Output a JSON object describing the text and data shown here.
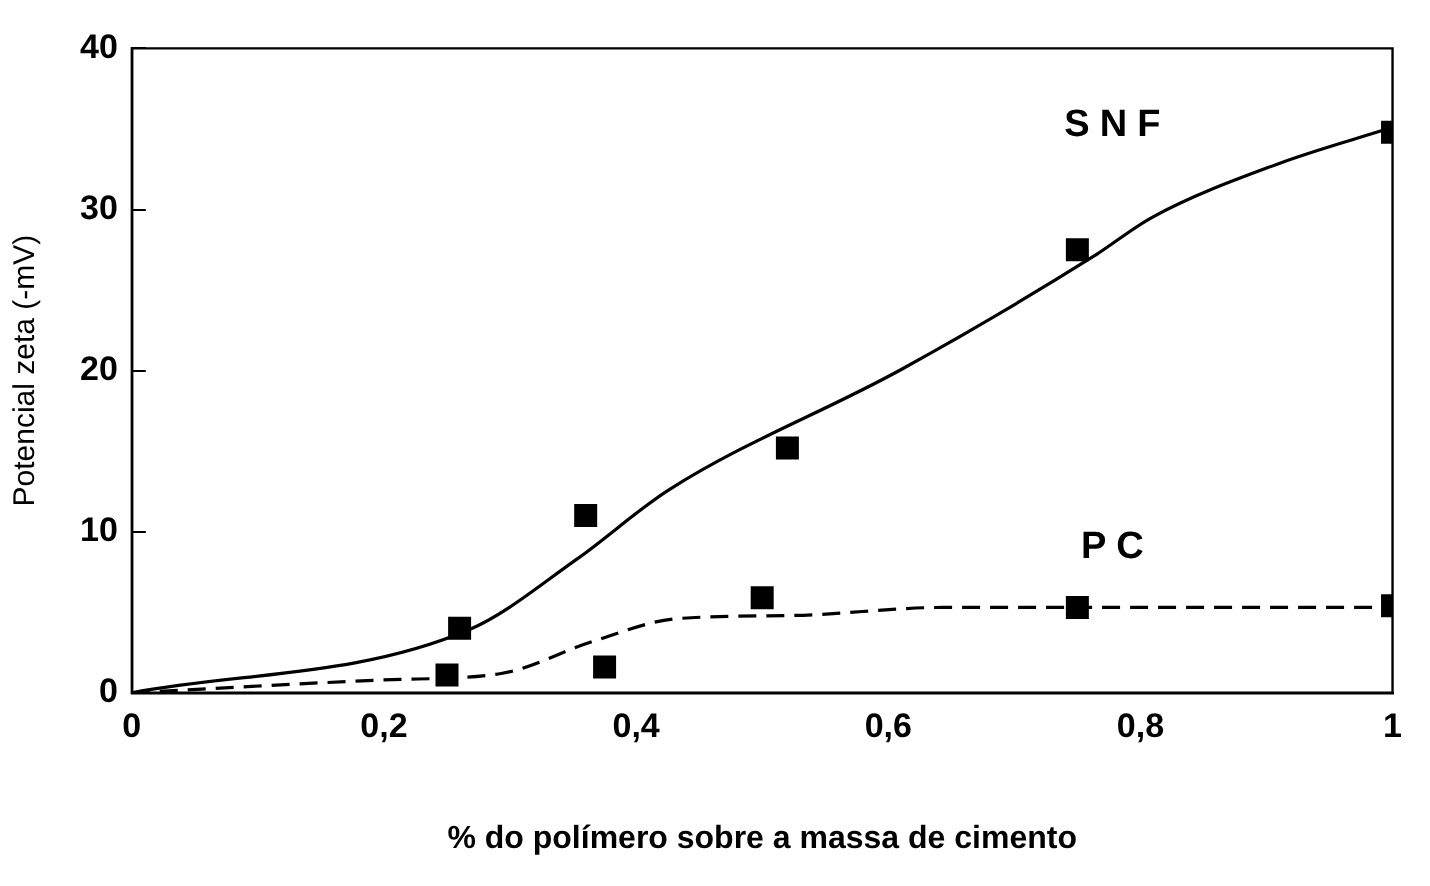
{
  "chart_data": {
    "type": "scatter",
    "xlabel": "% do polímero sobre a massa de cimento",
    "ylabel": "Potencial zeta (-mV)",
    "xlim": [
      0,
      1
    ],
    "xticks": [
      0,
      {
        "value": 0.2,
        "label": "0,2"
      },
      {
        "value": 0.4,
        "label": "0,4"
      },
      {
        "value": 0.6,
        "label": "0,6"
      },
      {
        "value": 0.8,
        "label": "0,8"
      },
      1
    ],
    "ylim": [
      0,
      40
    ],
    "yticks": [
      0,
      10,
      20,
      30,
      40
    ],
    "grid": false,
    "legend": false,
    "series": [
      {
        "type": "line",
        "color": "#000000",
        "line_style": "solid",
        "marker": "none",
        "x": [
          0,
          0.267,
          0.353,
          0.426,
          0.611,
          0.763,
          0.809,
          0.908,
          1.0
        ],
        "values": [
          0,
          3.9,
          8.3,
          12.6,
          20.1,
          27.1,
          29.5,
          32.8,
          35.1
        ]
      },
      {
        "type": "line",
        "color": "#000000",
        "line_style": "dashed",
        "marker": "none",
        "x": [
          0,
          0.2,
          0.293,
          0.366,
          0.432,
          0.525,
          0.644,
          1.0
        ],
        "values": [
          0,
          0.8,
          1.2,
          3.2,
          4.6,
          4.8,
          5.3,
          5.3
        ]
      },
      {
        "name": "SNF",
        "color": "#000000",
        "marker": "square",
        "x": [
          0.26,
          0.36,
          0.52,
          0.75,
          1.0
        ],
        "values": [
          4,
          11,
          15.2,
          27.5,
          34.8
        ]
      },
      {
        "name": "PC",
        "color": "#000000",
        "marker": "square",
        "x": [
          0.25,
          0.375,
          0.5,
          0.75,
          1.0
        ],
        "values": [
          1.1,
          1.6,
          5.9,
          5.3,
          5.4
        ]
      }
    ]
  }
}
